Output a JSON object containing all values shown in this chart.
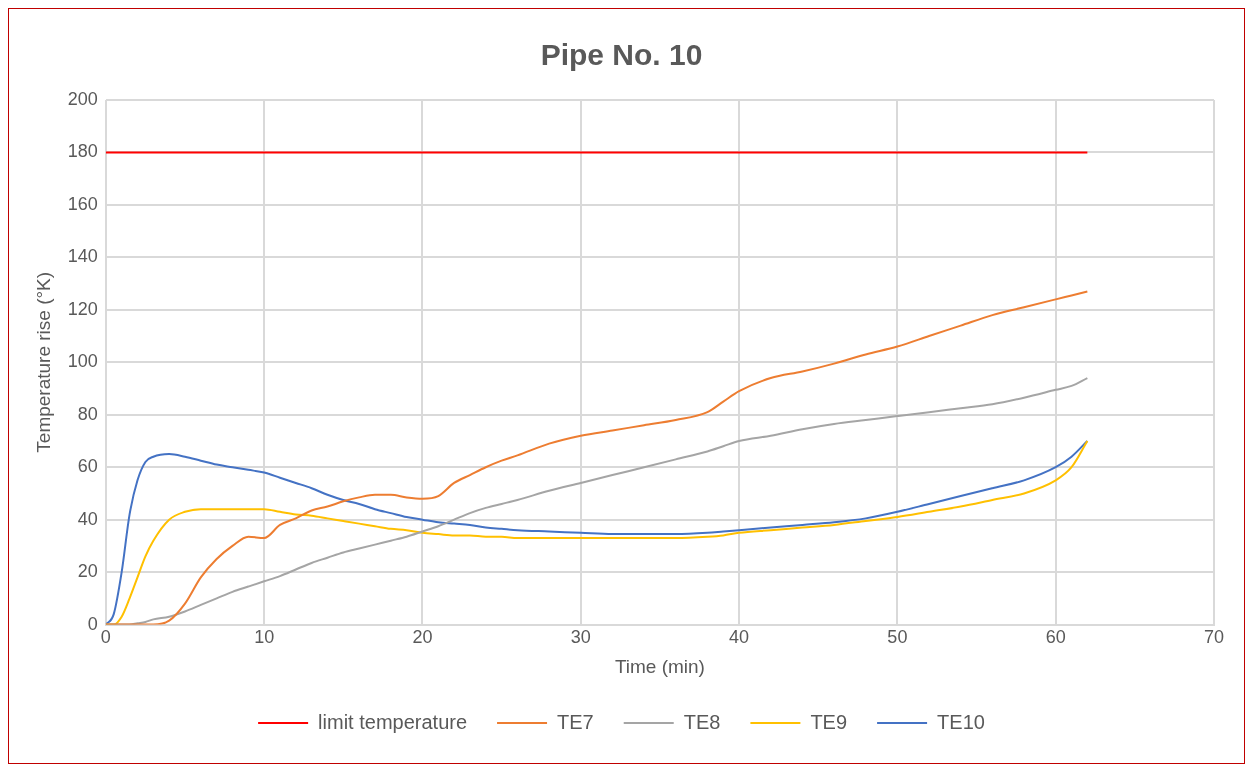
{
  "chart_data": {
    "type": "line",
    "title": "Pipe No. 10",
    "xlabel": "Time (min)",
    "ylabel": "Temperature rise (°K)",
    "x": [
      0,
      0.5,
      1,
      1.5,
      2,
      2.5,
      3,
      4,
      5,
      6,
      7,
      8,
      9,
      10,
      11,
      12,
      13,
      14,
      15,
      16,
      17,
      18,
      19,
      20,
      21,
      22,
      23,
      24,
      25,
      26,
      28,
      30,
      32,
      34,
      36,
      38,
      39,
      40,
      42,
      44,
      46,
      48,
      50,
      52,
      54,
      56,
      58,
      60,
      61,
      62
    ],
    "xlim": [
      0,
      70
    ],
    "xticks": [
      0,
      10,
      20,
      30,
      40,
      50,
      60,
      70
    ],
    "ylim": [
      0,
      200
    ],
    "yticks": [
      0,
      20,
      40,
      60,
      80,
      100,
      120,
      140,
      160,
      180,
      200
    ],
    "grid": true,
    "legend": "bottom",
    "marker": "none",
    "line_style": "solid",
    "series": [
      {
        "name": "limit temperature",
        "color": "#ff0000",
        "x": [
          0,
          62
        ],
        "values": [
          180,
          180
        ]
      },
      {
        "name": "TE7",
        "color": "#ed7d31",
        "values": [
          0,
          0,
          0,
          0,
          0,
          0,
          0,
          1.5,
          8,
          18,
          25,
          30,
          33.5,
          33,
          38,
          40.5,
          43.5,
          45,
          47,
          48.5,
          49.5,
          49.5,
          48.5,
          48,
          49,
          54,
          57,
          60,
          62.5,
          64.5,
          69,
          72,
          74,
          76,
          78,
          81,
          85,
          89,
          94,
          96.5,
          99.5,
          103,
          106,
          110,
          114,
          118,
          121,
          124,
          125.5,
          127
        ]
      },
      {
        "name": "TE8",
        "color": "#a5a5a5",
        "values": [
          0,
          0,
          0,
          0,
          0.5,
          1,
          2,
          3,
          5,
          7.5,
          10,
          12.5,
          14.5,
          16.5,
          18.5,
          21,
          23.5,
          25.5,
          27.5,
          29,
          30.5,
          32,
          33.5,
          35.5,
          37.5,
          40,
          42.5,
          44.5,
          46,
          47.5,
          51,
          54,
          57,
          60,
          63,
          66,
          68,
          70,
          72,
          74.5,
          76.5,
          78,
          79.5,
          81,
          82.5,
          84,
          86.5,
          89.5,
          91,
          94
        ]
      },
      {
        "name": "TE9",
        "color": "#ffc000",
        "values": [
          0,
          0,
          3,
          10,
          18,
          26,
          32,
          40,
          43,
          44,
          44,
          44,
          44,
          44,
          43,
          42,
          41.5,
          40.5,
          39.5,
          38.5,
          37.5,
          36.5,
          36,
          35,
          34.5,
          34,
          34,
          33.5,
          33.5,
          33,
          33,
          33,
          33,
          33,
          33,
          33.5,
          34,
          35,
          36,
          37,
          38,
          39.5,
          41,
          43,
          45,
          47.5,
          50,
          55,
          60,
          70
        ]
      },
      {
        "name": "TE10",
        "color": "#4472c4",
        "values": [
          0,
          4,
          20,
          42,
          55,
          62,
          64,
          65,
          64,
          62.5,
          61,
          60,
          59,
          58,
          56,
          54,
          52,
          49.5,
          47.5,
          46,
          44,
          42.5,
          41,
          40,
          39,
          38.5,
          38,
          37,
          36.5,
          36,
          35.5,
          35,
          34.5,
          34.5,
          34.5,
          35,
          35.5,
          36,
          37,
          38,
          39,
          40.5,
          43,
          46,
          49,
          52,
          55,
          60,
          64,
          70
        ]
      }
    ]
  }
}
